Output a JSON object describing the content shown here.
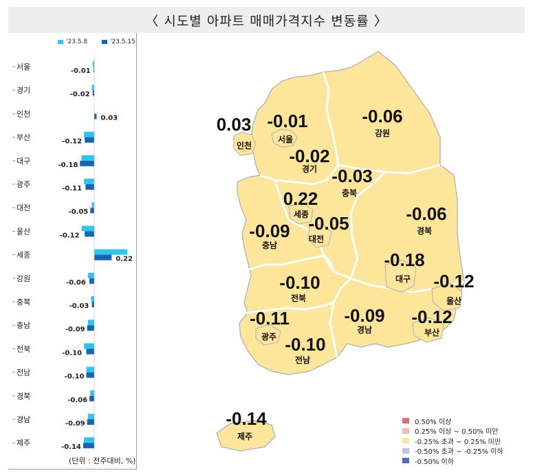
{
  "title": "〈 시도별 아파트 매매가격지수 변동률 〉",
  "unit_note": "(단위 : 전주대비, %)",
  "chart_data": {
    "type": "bar",
    "orientation": "horizontal",
    "categories": [
      "서울",
      "경기",
      "인천",
      "부산",
      "대구",
      "광주",
      "대전",
      "울산",
      "세종",
      "강원",
      "충북",
      "충남",
      "전북",
      "전남",
      "경북",
      "경남",
      "제주"
    ],
    "series": [
      {
        "name": "'23.5.8",
        "color": "#2ec5f2",
        "values": [
          -0.02,
          -0.03,
          0.0,
          -0.13,
          -0.16,
          -0.13,
          -0.03,
          -0.16,
          0.42,
          -0.08,
          -0.04,
          -0.08,
          -0.13,
          -0.1,
          -0.05,
          -0.08,
          -0.13
        ]
      },
      {
        "name": "'23.5.15",
        "color": "#1565b5",
        "values": [
          -0.01,
          -0.02,
          0.03,
          -0.12,
          -0.18,
          -0.11,
          -0.05,
          -0.12,
          0.22,
          -0.06,
          -0.03,
          -0.09,
          -0.1,
          -0.1,
          -0.06,
          -0.09,
          -0.14
        ]
      }
    ],
    "data_labels": [
      "-0.01",
      "-0.02",
      "0.03",
      "-0.12",
      "-0.18",
      "-0.11",
      "-0.05",
      "-0.12",
      "0.22",
      "-0.06",
      "-0.03",
      "-0.09",
      "-0.10",
      "-0.10",
      "-0.06",
      "-0.09",
      "-0.14"
    ],
    "legend_position": "top"
  },
  "map": {
    "fill": "#fde59a",
    "regions": [
      {
        "name": "인천",
        "value": "0.03"
      },
      {
        "name": "서울",
        "value": "-0.01"
      },
      {
        "name": "강원",
        "value": "-0.06"
      },
      {
        "name": "경기",
        "value": "-0.02"
      },
      {
        "name": "충북",
        "value": "-0.03"
      },
      {
        "name": "세종",
        "value": "0.22"
      },
      {
        "name": "경북",
        "value": "-0.06"
      },
      {
        "name": "충남",
        "value": "-0.09"
      },
      {
        "name": "대전",
        "value": "-0.05"
      },
      {
        "name": "대구",
        "value": "-0.18"
      },
      {
        "name": "울산",
        "value": "-0.12"
      },
      {
        "name": "전북",
        "value": "-0.10"
      },
      {
        "name": "광주",
        "value": "-0.11"
      },
      {
        "name": "경남",
        "value": "-0.09"
      },
      {
        "name": "부산",
        "value": "-0.12"
      },
      {
        "name": "전남",
        "value": "-0.10"
      },
      {
        "name": "제주",
        "value": "-0.14"
      }
    ]
  },
  "map_legend": [
    {
      "label": "0.50% 이상",
      "color": "#e8696b"
    },
    {
      "label": "0.25% 이상 ~ 0.50% 미만",
      "color": "#f4b8b8"
    },
    {
      "label": "-0.25% 초과 ~ 0.25% 미만",
      "color": "#fde59a"
    },
    {
      "label": "-0.50% 초과 ~ -0.25% 이하",
      "color": "#b8c4e8"
    },
    {
      "label": "-0.50% 이하",
      "color": "#4c6cc4"
    }
  ]
}
